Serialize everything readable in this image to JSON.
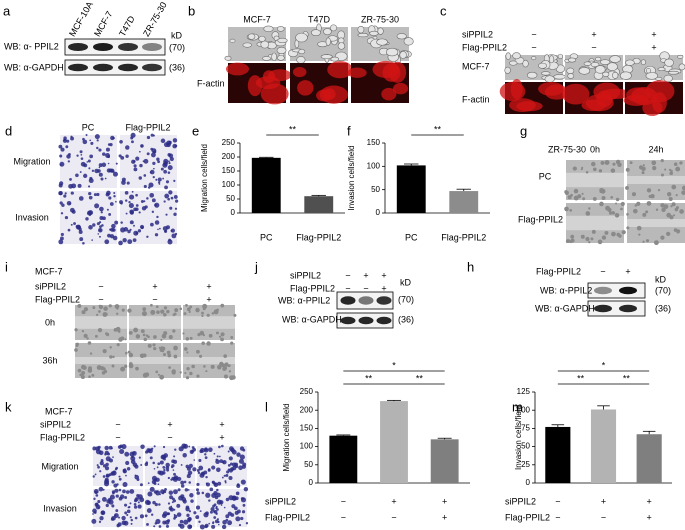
{
  "panels": {
    "a": {
      "letter": "a",
      "lanes": [
        "MCF-10A",
        "MCF-7",
        "T47D",
        "ZR-75-30"
      ],
      "kd": "kD",
      "blots": [
        {
          "label": "WB: α- PPIL2",
          "size": "(70)"
        },
        {
          "label": "WB: α-GAPDH",
          "size": "(36)"
        }
      ]
    },
    "b": {
      "letter": "b",
      "columns": [
        "MCF-7",
        "T47D",
        "ZR-75-30"
      ],
      "row_label": "F-actin"
    },
    "c": {
      "letter": "c",
      "conditions": [
        {
          "name": "siPPIL2",
          "signs": [
            "−",
            "+",
            "+"
          ]
        },
        {
          "name": "Flag-PPIL2",
          "signs": [
            "−",
            "−",
            "+"
          ]
        }
      ],
      "row_labels": [
        "MCF-7",
        "F-actin"
      ]
    },
    "d": {
      "letter": "d",
      "columns": [
        "PC",
        "Flag-PPIL2"
      ],
      "row_labels": [
        "Migration",
        "Invasion"
      ]
    },
    "g": {
      "letter": "g",
      "cell_line": "ZR-75-30",
      "columns": [
        "0h",
        "24h"
      ],
      "row_labels": [
        "PC",
        "Flag-PPIL2"
      ]
    },
    "i": {
      "letter": "i",
      "cell_line": "MCF-7",
      "conditions": [
        {
          "name": "siPPIL2",
          "signs": [
            "−",
            "+",
            "+"
          ]
        },
        {
          "name": "Flag-PPIL2",
          "signs": [
            "−",
            "−",
            "+"
          ]
        }
      ],
      "row_labels": [
        "0h",
        "36h"
      ]
    },
    "j": {
      "letter": "j",
      "conditions": [
        {
          "name": "siPPIL2",
          "signs": [
            "−",
            "+",
            "+"
          ]
        },
        {
          "name": "Flag-PPIL2",
          "signs": [
            "−",
            "−",
            "+"
          ]
        }
      ],
      "kd": "kD",
      "blots": [
        {
          "label": "WB: α-PPIL2",
          "size": "(70)"
        },
        {
          "label": "WB: α-GAPDH",
          "size": "(36)"
        }
      ]
    },
    "h": {
      "letter": "h",
      "conditions": [
        {
          "name": "Flag-PPIL2",
          "signs": [
            "−",
            "+"
          ]
        }
      ],
      "kd": "kD",
      "blots": [
        {
          "label": "WB: α-PPIL2",
          "size": "(70)"
        },
        {
          "label": "WB: α-GAPDH",
          "size": "(36)"
        }
      ]
    },
    "k": {
      "letter": "k",
      "cell_line": "MCF-7",
      "conditions": [
        {
          "name": "siPPIL2",
          "signs": [
            "−",
            "+",
            "+"
          ]
        },
        {
          "name": "Flag-PPIL2",
          "signs": [
            "−",
            "−",
            "+"
          ]
        }
      ],
      "row_labels": [
        "Migration",
        "Invasion"
      ]
    }
  },
  "chart_data": [
    {
      "type": "bar",
      "panel_label": "e",
      "y_label": "Migration cells/field",
      "categories": [
        "PC",
        "Flag-PPIL2"
      ],
      "values": [
        197,
        60
      ],
      "errors": [
        2,
        3
      ],
      "colors": [
        "#000000",
        "#505050"
      ],
      "ylim": [
        0,
        250
      ],
      "yticks": [
        0,
        50,
        100,
        150,
        200,
        250
      ],
      "significance": [
        {
          "from": 0,
          "to": 1,
          "label": "**"
        }
      ]
    },
    {
      "type": "bar",
      "panel_label": "f",
      "y_label": "Invasion cells/field",
      "categories": [
        "PC",
        "Flag-PPIL2"
      ],
      "values": [
        102,
        47
      ],
      "errors": [
        3,
        4
      ],
      "colors": [
        "#000000",
        "#8c8c8c"
      ],
      "ylim": [
        0,
        150
      ],
      "yticks": [
        0,
        50,
        100,
        150
      ],
      "significance": [
        {
          "from": 0,
          "to": 1,
          "label": "**"
        }
      ]
    },
    {
      "type": "bar",
      "panel_label": "l",
      "y_label": "Migration cells/field",
      "conditions": [
        {
          "name": "siPPIL2",
          "signs": [
            "−",
            "+",
            "+"
          ]
        },
        {
          "name": "Flag-PPIL2",
          "signs": [
            "−",
            "−",
            "+"
          ]
        }
      ],
      "values": [
        130,
        225,
        120
      ],
      "errors": [
        2,
        2,
        3
      ],
      "colors": [
        "#000000",
        "#b3b3b3",
        "#7f7f7f"
      ],
      "ylim": [
        0,
        250
      ],
      "yticks": [
        0,
        50,
        100,
        150,
        200,
        250
      ],
      "significance": [
        {
          "from": 0,
          "to": 2,
          "label": "*"
        },
        {
          "from": 0,
          "to": 1,
          "label": "**"
        },
        {
          "from": 1,
          "to": 2,
          "label": "**"
        }
      ]
    },
    {
      "type": "bar",
      "panel_label": "m",
      "y_label": "Invasion cells/field",
      "conditions": [
        {
          "name": "siPPIL2",
          "signs": [
            "−",
            "+",
            "+"
          ]
        },
        {
          "name": "Flag-PPIL2",
          "signs": [
            "−",
            "−",
            "+"
          ]
        }
      ],
      "values": [
        77,
        101,
        67
      ],
      "errors": [
        3,
        5,
        4
      ],
      "colors": [
        "#000000",
        "#b3b3b3",
        "#7f7f7f"
      ],
      "ylim": [
        0,
        125
      ],
      "yticks": [
        0,
        25,
        50,
        75,
        100,
        125
      ],
      "significance": [
        {
          "from": 0,
          "to": 2,
          "label": "*"
        },
        {
          "from": 0,
          "to": 1,
          "label": "**"
        },
        {
          "from": 1,
          "to": 2,
          "label": "**"
        }
      ]
    }
  ]
}
